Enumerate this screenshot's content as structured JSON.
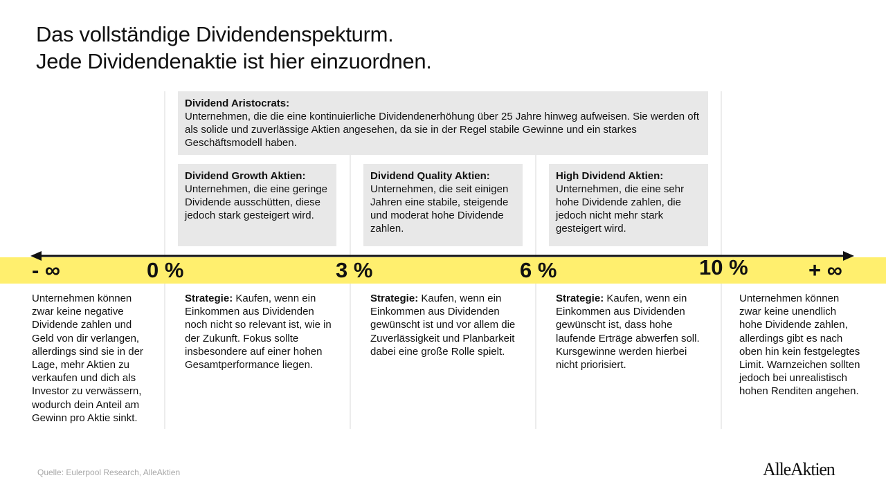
{
  "title": {
    "line1": "Das vollständige Dividendenspekturm.",
    "line2": "Jede Dividendenaktie ist hier einzuordnen."
  },
  "aristocrats": {
    "heading": "Dividend Aristocrats:",
    "text": "Unternehmen, die die eine kontinuierliche Dividendenerhöhung über 25 Jahre hinweg aufweisen. Sie werden oft als solide und zuverlässige Aktien angesehen, da sie in der Regel stabile Gewinne und ein starkes Geschäftsmodell haben."
  },
  "categories": [
    {
      "heading": "Dividend Growth Aktien:",
      "text": "Unternehmen, die eine geringe Dividende ausschütten, diese jedoch stark gesteigert wird."
    },
    {
      "heading": "Dividend Quality Aktien:",
      "text": "Unternehmen, die seit einigen Jahren eine stabile, steigende und moderat hohe Dividende zahlen."
    },
    {
      "heading": "High Dividend Aktien:",
      "text": "Unternehmen, die eine sehr hohe Dividende zahlen, die jedoch nicht mehr stark gesteigert wird."
    }
  ],
  "axis": {
    "ticks": [
      "- ∞",
      "0 %",
      "3 %",
      "6 %",
      "10 %",
      "+ ∞"
    ],
    "band_color": "#ffef6e"
  },
  "descriptions": {
    "left": "Unternehmen können zwar keine negative Dividende zahlen und Geld von dir verlangen, allerdings sind sie in der Lage, mehr Aktien zu verkaufen und dich als Investor zu verwässern, wodurch dein Anteil am Gewinn pro Aktie sinkt.",
    "strategy_label": "Strategie:",
    "strategies": [
      "Kaufen, wenn ein Einkommen aus Dividenden noch nicht so relevant ist, wie in der Zukunft. Fokus sollte insbesondere auf einer hohen Gesamtperformance liegen.",
      "Kaufen, wenn ein Einkommen aus Dividenden gewünscht ist und vor allem die Zuverlässigkeit und Planbarkeit dabei eine große Rolle spielt.",
      "Kaufen, wenn ein Einkommen aus Dividenden gewünscht ist, dass hohe laufende Erträge abwerfen soll. Kursgewinne werden hierbei nicht priorisiert."
    ],
    "right": "Unternehmen können zwar keine unendlich hohe Dividende zahlen, allerdings gibt es nach oben hin kein festgelegtes Limit. Warnzeichen sollten jedoch bei unrealistisch hohen Renditen angehen."
  },
  "footer": {
    "source": "Quelle: Eulerpool Research, AlleAktien",
    "logo": "AlleAktien"
  }
}
